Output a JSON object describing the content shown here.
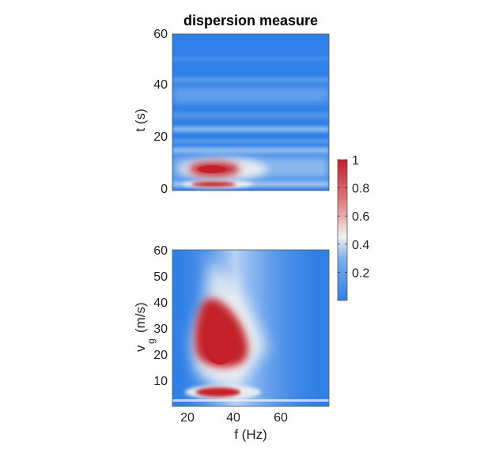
{
  "chart_data": [
    {
      "type": "heatmap",
      "title": "dispersion measure",
      "ylabel": "t (s)",
      "ylim": [
        0,
        60
      ],
      "yticks": [
        0,
        20,
        40,
        60
      ],
      "xlim": [
        14,
        78
      ],
      "colorscale": [
        "#2f7fe6",
        "#f2f2f2",
        "#c3202a"
      ],
      "features": [
        {
          "desc": "hot spot",
          "f": 29,
          "t": 8,
          "value": 1.0
        },
        {
          "desc": "hot spot",
          "f": 29,
          "t": 1.5,
          "value": 0.95
        }
      ]
    },
    {
      "type": "heatmap",
      "ylabel": "v",
      "ylabel_subscript": "g",
      "ylabel_unit": "(m/s)",
      "xlabel": "f (Hz)",
      "xlim": [
        14,
        78
      ],
      "xticks": [
        20,
        40,
        60
      ],
      "ylim": [
        0,
        60
      ],
      "yticks": [
        10,
        20,
        30,
        40,
        50,
        60
      ],
      "features": [
        {
          "desc": "hot spot",
          "f": 31,
          "vg": 25,
          "value": 1.0
        },
        {
          "desc": "hot spot",
          "f": 31,
          "vg": 5,
          "value": 0.95
        }
      ]
    }
  ],
  "colorbar": {
    "range": [
      0,
      1
    ],
    "ticks": [
      0.2,
      0.4,
      0.6,
      0.8,
      1
    ],
    "tick_labels": [
      "0.2",
      "0.4",
      "0.6",
      "0.8",
      "1"
    ]
  }
}
